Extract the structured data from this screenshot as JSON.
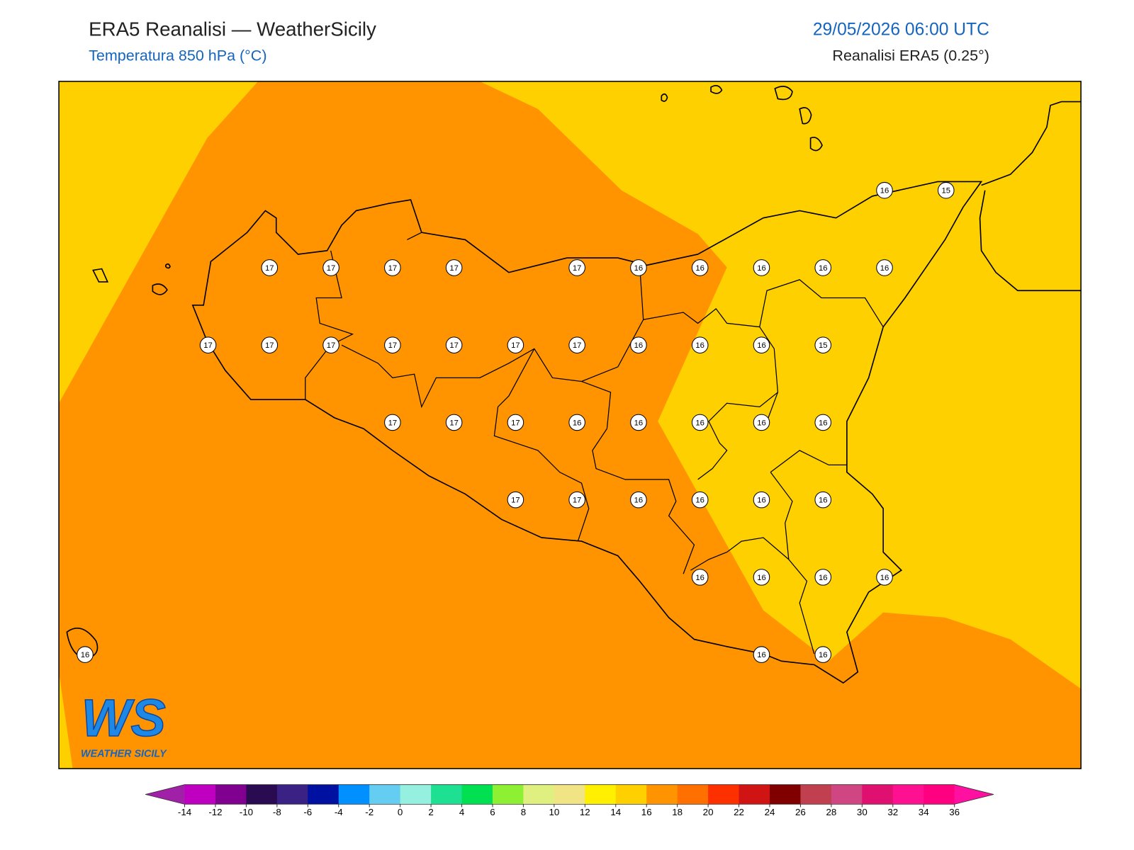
{
  "header": {
    "title": "ERA5 Reanalisi — WeatherSicily",
    "subtitle": "Temperatura 850 hPa (°C)",
    "datetime": "29/05/2026 06:00 UTC",
    "source": "Reanalisi ERA5 (0.25°)"
  },
  "stations": [
    [
      null,
      null,
      null,
      null,
      null,
      null,
      null,
      null,
      null,
      null,
      null,
      null,
      null,
      16,
      15
    ],
    [
      null,
      null,
      null,
      17,
      17,
      17,
      17,
      null,
      17,
      16,
      16,
      16,
      16,
      16,
      null
    ],
    [
      null,
      null,
      17,
      17,
      17,
      17,
      17,
      17,
      17,
      16,
      16,
      16,
      15,
      null,
      null
    ],
    [
      null,
      null,
      null,
      null,
      null,
      17,
      17,
      17,
      16,
      16,
      16,
      16,
      16,
      null,
      null
    ],
    [
      null,
      null,
      null,
      null,
      null,
      null,
      null,
      17,
      17,
      16,
      16,
      16,
      16,
      null,
      null
    ],
    [
      null,
      null,
      null,
      null,
      null,
      null,
      null,
      null,
      null,
      null,
      16,
      16,
      16,
      16,
      null
    ],
    [
      16,
      null,
      null,
      null,
      null,
      null,
      null,
      null,
      null,
      null,
      null,
      16,
      16,
      null,
      null
    ]
  ],
  "colorbar": {
    "ticks": [
      -14,
      -12,
      -10,
      -8,
      -6,
      -4,
      -2,
      0,
      2,
      4,
      6,
      8,
      10,
      12,
      14,
      16,
      18,
      20,
      22,
      24,
      26,
      28,
      30,
      32,
      34,
      36
    ],
    "colors": [
      "#c000c0",
      "#80008f",
      "#2a0a50",
      "#3a2184",
      "#0010a0",
      "#0090ff",
      "#66cdf2",
      "#96f0e0",
      "#1ee092",
      "#00e050",
      "#8ef032",
      "#e0f080",
      "#f0e484",
      "#fff000",
      "#ffd000",
      "#ff9400",
      "#ff7000",
      "#ff3000",
      "#d01414",
      "#800000",
      "#c04050",
      "#d04682",
      "#e01070",
      "#ff1090",
      "#ff0080"
    ],
    "under_color": "#a020a8",
    "over_color": "#ff10a0"
  },
  "logo": {
    "text": "WS",
    "subtext": "WEATHER SICILY"
  }
}
